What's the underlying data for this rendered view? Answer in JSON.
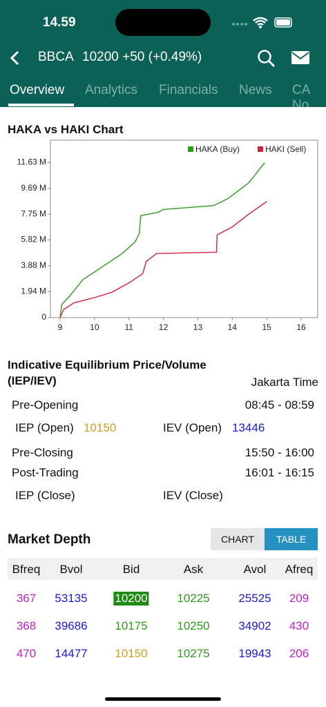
{
  "status_bar": {
    "time": "14.59"
  },
  "header": {
    "symbol": "BBCA",
    "quote": "10200 +50 (+0.49%)"
  },
  "tabs": [
    "Overview",
    "Analytics",
    "Financials",
    "News",
    "CA No"
  ],
  "chart_data": {
    "type": "line",
    "title": "HAKA vs HAKI Chart",
    "xlim": [
      8.72,
      16.48
    ],
    "xticks": [
      9,
      10,
      11,
      12,
      13,
      14,
      15,
      16
    ],
    "ylim": [
      0,
      13300000
    ],
    "yticks": [
      0,
      {
        "value": 1940000,
        "label": "1.94 M"
      },
      {
        "value": 3880000,
        "label": "3.88 M"
      },
      {
        "value": 5820000,
        "label": "5.82 M"
      },
      {
        "value": 7750000,
        "label": "7.75 M"
      },
      {
        "value": 9690000,
        "label": "9.69 M"
      },
      {
        "value": 11630000,
        "label": "11.63 M"
      }
    ],
    "series": [
      {
        "name": "HAKA (Buy)",
        "color": "#2e9a1e",
        "x": [
          9.0,
          9.05,
          9.26,
          9.66,
          10.26,
          10.78,
          11.18,
          11.3,
          11.34,
          11.86,
          11.98,
          13.46,
          13.86,
          14.46,
          14.94
        ],
        "values": [
          0,
          1000000,
          1550000,
          2840000,
          3870000,
          4750000,
          5680000,
          6300000,
          7640000,
          7900000,
          8100000,
          8400000,
          8900000,
          10060000,
          11600000
        ]
      },
      {
        "name": "HAKI (Sell)",
        "color": "#d0213f",
        "x": [
          9.0,
          9.1,
          9.4,
          10.0,
          10.5,
          11.0,
          11.4,
          11.5,
          11.8,
          13.54,
          13.56,
          14.0,
          14.5,
          15.0
        ],
        "values": [
          0,
          600000,
          1100000,
          1500000,
          1900000,
          2600000,
          3300000,
          4200000,
          4800000,
          4900000,
          6200000,
          6800000,
          7800000,
          8700000
        ]
      }
    ]
  },
  "iep": {
    "title": "Indicative Equilibrium Price/Volume (IEP/IEV)",
    "timezone": "Jakarta Time",
    "pre_opening": {
      "label": "Pre-Opening",
      "time": "08:45 - 08:59"
    },
    "iep_open": {
      "label": "IEP (Open)",
      "value": "10150"
    },
    "iev_open": {
      "label": "IEV (Open)",
      "value": "13446"
    },
    "pre_closing": {
      "label": "Pre-Closing",
      "time": "15:50 - 16:00"
    },
    "post_trading": {
      "label": "Post-Trading",
      "time": "16:01 - 16:15"
    },
    "iep_close": {
      "label": "IEP (Close)"
    },
    "iev_close": {
      "label": "IEV (Close)"
    }
  },
  "market_depth": {
    "title": "Market Depth",
    "buttons": [
      "CHART",
      "TABLE"
    ],
    "columns": [
      "Bfreq",
      "Bvol",
      "Bid",
      "Ask",
      "Avol",
      "Afreq"
    ],
    "rows": [
      [
        367,
        53135,
        10200,
        10225,
        25525,
        209
      ],
      [
        368,
        39686,
        10175,
        10250,
        34902,
        430
      ],
      [
        470,
        14477,
        10150,
        10275,
        19943,
        206
      ]
    ]
  }
}
